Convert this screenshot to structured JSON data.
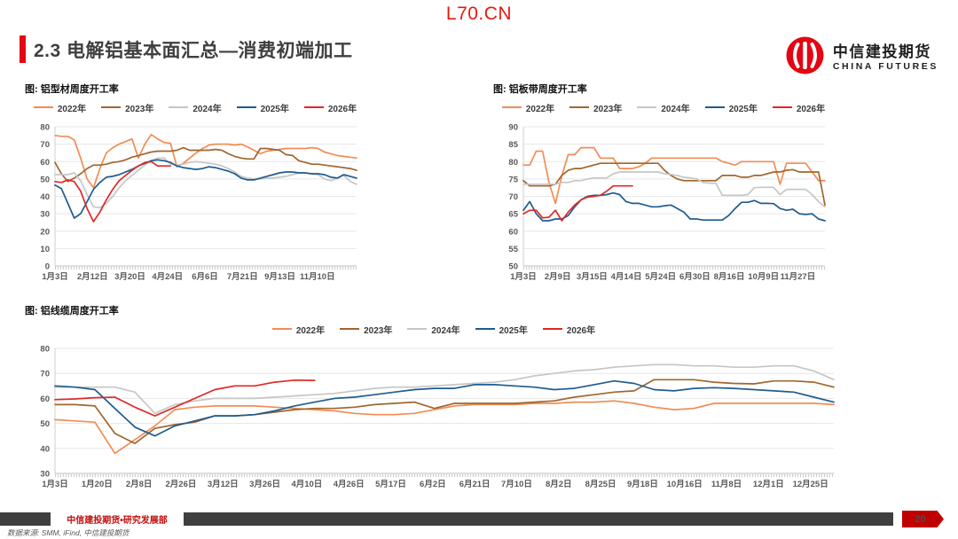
{
  "watermark": "L70.CN",
  "header": {
    "section_title": "2.3 电解铝基本面汇总—消费初端加工"
  },
  "logo": {
    "cn": "中信建投期货",
    "en": "CHINA FUTURES",
    "emblem": "citic-emblem-icon",
    "brand_red": "#e30613"
  },
  "footer": {
    "dept": "中信建投期货•研究发展部",
    "page": "20",
    "source": "数据来源: SMM, iFind, 中信建投期货"
  },
  "colors": {
    "accent_red": "#e30613",
    "badge_red": "#c00000",
    "title_gray": "#3f3f3f",
    "grid": "#e7e7e7",
    "axis": "#bdbdbd"
  },
  "chart_data": [
    {
      "type": "line",
      "fig_label": "图: 铝型材周度开工率",
      "title": "铝型材周度开工率",
      "ylim": [
        0,
        80
      ],
      "ystep": 10,
      "grid": true,
      "legend_position": "top",
      "tick_span": 0.87,
      "ticks": [
        "1月3日",
        "2月12日",
        "3月20日",
        "4月24日",
        "6月6日",
        "7月21日",
        "9月13日",
        "11月10日"
      ],
      "series": [
        {
          "name": "2022年",
          "color": "#f28c54",
          "values": [
            75,
            74.5,
            74.5,
            72.5,
            62,
            50,
            45,
            56,
            65,
            68,
            70,
            71.5,
            73,
            62,
            70,
            75.5,
            73,
            71,
            70.5,
            57,
            59,
            62,
            65,
            67.5,
            69.5,
            70,
            70,
            70,
            69.5,
            70,
            68.5,
            66.5,
            64.5,
            66,
            66.5,
            67,
            67.5,
            67.5,
            67.5,
            67.5,
            68,
            67.5,
            65.5,
            64.5,
            63.5,
            63,
            62.5,
            62
          ]
        },
        {
          "name": "2023年",
          "color": "#a0662e",
          "values": [
            59.5,
            53,
            48.5,
            50.5,
            53,
            56,
            58,
            58,
            58.5,
            59.5,
            60,
            61,
            62.5,
            63.5,
            64.5,
            65.5,
            66,
            66,
            66,
            66.5,
            68,
            66.5,
            66.5,
            66.5,
            66.5,
            67,
            66.5,
            64.5,
            63,
            62,
            61.5,
            61.5,
            67.5,
            67.5,
            67,
            66.5,
            64,
            63.5,
            60.5,
            59.5,
            58.5,
            58.5,
            58,
            57.5,
            57,
            56.5,
            56,
            55
          ]
        },
        {
          "name": "2024年",
          "color": "#c6c6c6",
          "values": [
            52.5,
            52.5,
            52.5,
            53.5,
            49,
            41,
            34,
            33.5,
            36,
            40,
            45,
            49,
            52,
            55,
            58,
            60.5,
            62,
            62,
            58.5,
            58,
            58.5,
            59.5,
            60,
            59.5,
            59,
            58.5,
            57.5,
            56,
            54,
            51.5,
            50.5,
            50,
            50,
            50.5,
            50.5,
            51,
            51.5,
            52.5,
            53.5,
            53.5,
            53,
            52.5,
            50,
            49,
            50.5,
            52,
            48.5,
            47
          ]
        },
        {
          "name": "2025年",
          "color": "#1e5c90",
          "values": [
            46.5,
            44.5,
            36,
            27.5,
            30,
            37,
            44,
            48,
            51,
            51.5,
            52.5,
            54,
            55.5,
            57.5,
            59,
            60.5,
            61,
            60.5,
            59.5,
            57.5,
            56.5,
            56,
            55.5,
            56,
            57,
            56.5,
            55.5,
            54.5,
            53,
            50.5,
            49.5,
            49.5,
            50.5,
            51.5,
            52.5,
            53.5,
            54,
            54,
            53.5,
            53.5,
            53,
            53,
            52.5,
            51,
            50.5,
            52.5,
            51.5,
            50.5
          ]
        },
        {
          "name": "2026年",
          "color": "#e12726",
          "values": [
            48.5,
            48,
            49.5,
            48.5,
            43,
            33,
            25.5,
            31,
            38,
            44,
            49,
            52,
            55,
            57.5,
            59.5,
            60,
            57.5,
            57.5,
            57.5
          ]
        }
      ]
    },
    {
      "type": "line",
      "fig_label": "图: 铝板带周度开工率",
      "title": "铝板带周度开工率",
      "ylim": [
        50,
        90
      ],
      "ystep": 5,
      "grid": true,
      "legend_position": "top",
      "tick_span": 0.91,
      "ticks": [
        "1月3日",
        "2月9日",
        "3月15日",
        "4月14日",
        "5月24日",
        "6月30日",
        "8月16日",
        "10月9日",
        "11月27日"
      ],
      "series": [
        {
          "name": "2022年",
          "color": "#f28c54",
          "values": [
            79,
            79,
            83,
            83,
            74,
            68,
            76,
            82,
            82,
            84,
            84,
            84,
            81,
            81,
            81,
            78,
            78,
            78,
            78.5,
            79.5,
            81,
            81,
            81,
            81,
            81,
            81,
            81,
            81,
            81,
            81,
            81,
            80,
            79.5,
            79,
            80,
            80,
            80,
            80,
            80,
            80,
            73.5,
            79.5,
            79.5,
            79.5,
            79.5,
            77,
            74.5,
            74.5
          ]
        },
        {
          "name": "2023年",
          "color": "#a0662e",
          "values": [
            74.5,
            73,
            73,
            73,
            73,
            73.5,
            76,
            77.5,
            78,
            78,
            78.5,
            79,
            79.5,
            79.5,
            79.5,
            79.5,
            79.5,
            79.5,
            79.5,
            79.5,
            79.5,
            79.5,
            77.5,
            76,
            75,
            74.5,
            74.5,
            74.5,
            74.5,
            74.5,
            74.5,
            76,
            76,
            76,
            75.5,
            75.5,
            76,
            76,
            76.5,
            77,
            77,
            77.5,
            77.7,
            77,
            77,
            77,
            77,
            67.5
          ]
        },
        {
          "name": "2024年",
          "color": "#c6c6c6",
          "values": [
            73.5,
            73.5,
            73.5,
            73.5,
            73.5,
            73.5,
            74,
            74,
            74.5,
            74.5,
            75,
            75.3,
            75.3,
            75.3,
            76.5,
            77,
            77,
            77,
            77,
            77,
            77,
            77,
            76.5,
            76.3,
            76,
            75.5,
            75.3,
            75,
            74,
            73.8,
            73.8,
            70.3,
            70.3,
            70.3,
            70.3,
            70.5,
            72.5,
            72.6,
            72.6,
            72.6,
            70.5,
            72,
            72,
            72,
            72,
            70.5,
            68.5,
            67
          ]
        },
        {
          "name": "2025年",
          "color": "#1e5c90",
          "values": [
            66,
            68.5,
            65,
            63,
            63,
            63.5,
            63.5,
            64.5,
            67,
            69,
            70,
            70.3,
            70.3,
            70.5,
            71,
            70.5,
            68.5,
            68,
            68,
            67.5,
            67,
            67,
            67.3,
            67.5,
            66.5,
            65.5,
            63.5,
            63.5,
            63.2,
            63.2,
            63.2,
            63.2,
            64.5,
            66.5,
            68.3,
            68.3,
            68.8,
            68,
            68,
            67.9,
            66.5,
            66,
            66.3,
            65,
            64.8,
            65,
            63.5,
            63
          ]
        },
        {
          "name": "2026年",
          "color": "#e12726",
          "values": [
            65,
            66,
            66,
            63.8,
            64,
            66,
            63,
            65.5,
            67.5,
            69,
            69.8,
            70,
            70.3,
            71.5,
            73,
            73,
            73,
            73
          ]
        }
      ]
    },
    {
      "type": "line",
      "fig_label": "图: 铝线缆周度开工率",
      "title": "铝线缆周度开工率",
      "ylim": [
        30,
        80
      ],
      "ystep": 10,
      "grid": true,
      "legend_position": "top",
      "tick_span": 0.97,
      "ticks": [
        "1月3日",
        "1月20日",
        "2月8日",
        "2月26日",
        "3月12日",
        "3月26日",
        "4月10日",
        "4月26日",
        "5月17日",
        "6月2日",
        "6月21日",
        "7月10日",
        "8月2日",
        "8月25日",
        "9月18日",
        "10月16日",
        "11月8日",
        "12月1日",
        "12月25日"
      ],
      "series": [
        {
          "name": "2022年",
          "color": "#f28c54",
          "values": [
            51.5,
            51,
            50.5,
            38,
            43.5,
            49,
            55.5,
            56.5,
            57,
            57,
            57,
            56.5,
            56,
            55.5,
            55,
            54,
            53.5,
            53.5,
            54,
            55.5,
            57,
            57.5,
            57.5,
            57.5,
            58,
            58,
            58.5,
            58.5,
            59,
            58,
            56.5,
            55.5,
            56,
            58,
            58,
            58,
            58,
            58,
            58,
            57.5
          ]
        },
        {
          "name": "2023年",
          "color": "#a0662e",
          "values": [
            57.5,
            57.5,
            57,
            46,
            42,
            48,
            49.5,
            50.5,
            53,
            53,
            53.5,
            54.5,
            55.5,
            56,
            56,
            56.5,
            57.5,
            58,
            58.5,
            56,
            58,
            58,
            58,
            58,
            58.5,
            59,
            60.5,
            61.5,
            62.5,
            63,
            67.5,
            67.5,
            67.5,
            66.5,
            66,
            65.8,
            67,
            67,
            66.5,
            64.5
          ]
        },
        {
          "name": "2024年",
          "color": "#c6c6c6",
          "values": [
            64.5,
            64.5,
            64.5,
            64.5,
            62.5,
            54,
            57.5,
            59,
            60,
            60,
            60,
            60.5,
            61,
            61.5,
            62,
            63,
            64,
            64.5,
            64.5,
            65,
            65.5,
            66,
            66.5,
            67.5,
            69,
            70,
            71,
            71.5,
            72.5,
            73,
            73.5,
            73.5,
            73,
            73,
            72.5,
            72.5,
            73,
            73,
            71,
            67.5
          ]
        },
        {
          "name": "2025年",
          "color": "#1e5c90",
          "values": [
            65,
            64.5,
            63.5,
            56,
            48.5,
            45,
            49,
            51,
            53,
            53,
            53.5,
            55,
            57,
            58.5,
            60,
            60.5,
            61.5,
            62.5,
            63.5,
            64,
            64,
            65.5,
            65.5,
            65,
            64.5,
            63.5,
            64,
            65.5,
            67,
            66,
            63.5,
            63,
            64,
            64.3,
            64,
            63.5,
            63,
            62.5,
            60.5,
            58.5
          ]
        },
        {
          "name": "2026年",
          "color": "#e12726",
          "values": [
            59.5,
            59.8,
            60.3,
            60.5,
            56.5,
            53,
            56.5,
            60,
            63.5,
            65,
            65,
            66.5,
            67.3,
            67.2
          ]
        }
      ]
    }
  ]
}
